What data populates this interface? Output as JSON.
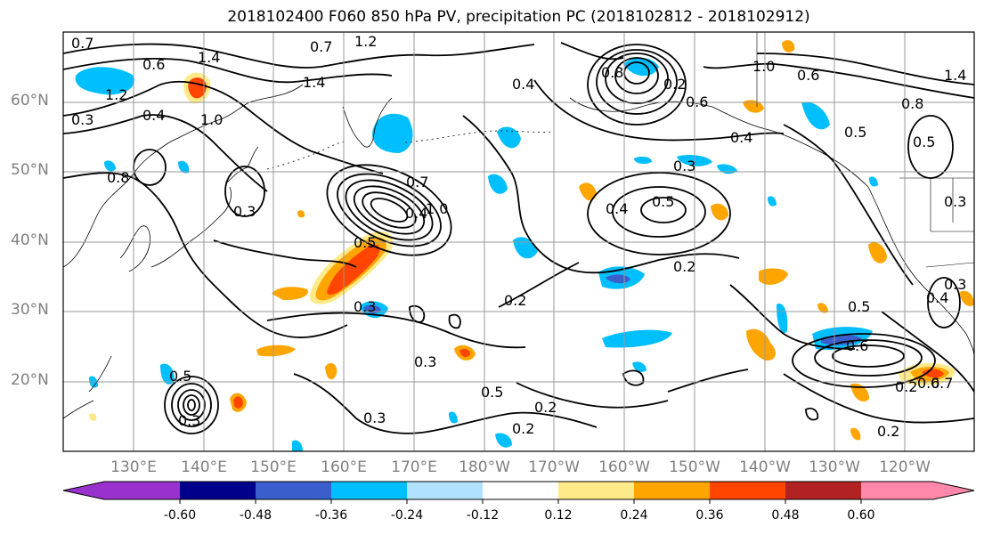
{
  "title": "2018102400 F060 850 hPa PV, precipitation PC (2018102812 - 2018102912)",
  "lat_labels": [
    "60°N",
    "50°N",
    "40°N",
    "30°N",
    "20°N"
  ],
  "lon_labels": [
    "130°E",
    "140°E",
    "150°E",
    "160°E",
    "170°E",
    "180°W",
    "170°W",
    "160°W",
    "150°W",
    "140°W",
    "130°W",
    "120°W"
  ],
  "colorbar": {
    "tick_labels": [
      "-0.60",
      "-0.48",
      "-0.36",
      "-0.24",
      "-0.12",
      "0.12",
      "0.24",
      "0.36",
      "0.48",
      "0.60"
    ],
    "colors": [
      "#9932cc",
      "#00008b",
      "#3a5fcd",
      "#00bfff",
      "#b0e2ff",
      "#ffffff",
      "#ffea8a",
      "#ffa500",
      "#ff4500",
      "#b22222",
      "#ff88aa"
    ]
  },
  "contour_labels": [
    "0.7",
    "0.6",
    "1.4",
    "1.2",
    "0.3",
    "0.4",
    "1.0",
    "0.8",
    "0.3",
    "1.4",
    "0.7",
    "1.2",
    "0.4",
    "0.8",
    "0.2",
    "0.6",
    "0.4",
    "0.3",
    "1.0",
    "0.6",
    "1.4",
    "0.5",
    "0.8",
    "0.5",
    "0.7",
    "0.4",
    "0.5",
    "0.2",
    "0.4",
    "1.0",
    "0.5",
    "0.3",
    "0.3",
    "0.2",
    "0.5",
    "0.3",
    "0.6",
    "0.2",
    "0.2",
    "0.3",
    "0.3",
    "0.6",
    "0.7",
    "0.2",
    "0.2",
    "0.5",
    "0.3",
    "0.5",
    "0.4"
  ]
}
